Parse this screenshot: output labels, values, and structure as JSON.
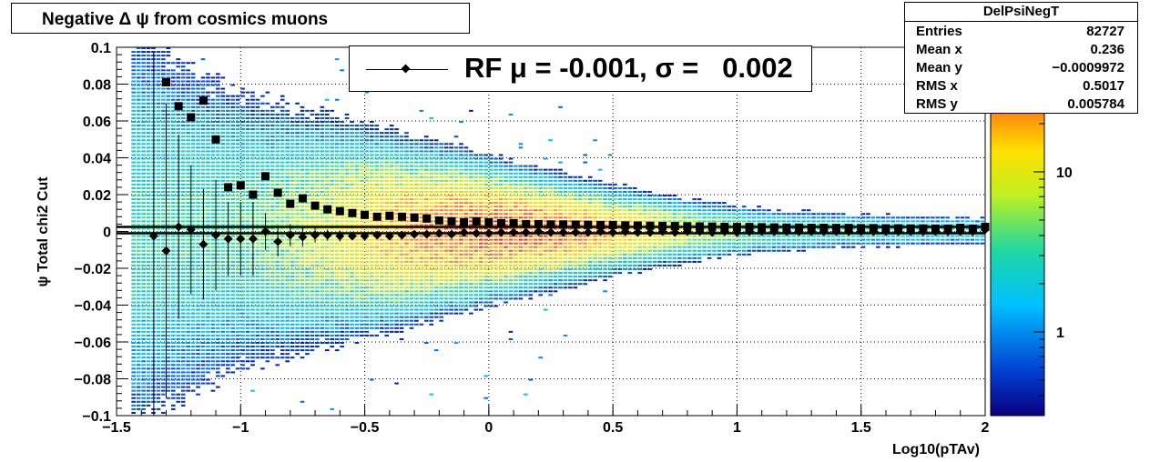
{
  "title": "Negative Δ ψ from cosmics muons",
  "legend": {
    "label": "RF μ = -0.001, σ =   0.002"
  },
  "stats": {
    "name": "DelPsiNegT",
    "rows": [
      {
        "key": "Entries",
        "value": "82727"
      },
      {
        "key": "Mean x",
        "value": "0.236"
      },
      {
        "key": "Mean y",
        "value": "−0.0009972"
      },
      {
        "key": "RMS x",
        "value": "0.5017"
      },
      {
        "key": "RMS y",
        "value": "0.005784"
      }
    ]
  },
  "chart_data": {
    "type": "heatmap",
    "title": "Negative Δ ψ from cosmics muons",
    "xlabel": "Log10(pTAv)",
    "ylabel": "ψ  Total chi2 Cut",
    "xlim": [
      -1.5,
      2
    ],
    "ylim": [
      -0.1,
      0.1
    ],
    "grid": true,
    "x_ticks": [
      -1.5,
      -1,
      -0.5,
      0,
      0.5,
      1,
      1.5,
      2
    ],
    "x_tick_labels": [
      "−1.5",
      "−1",
      "−0.5",
      "0",
      "0.5",
      "1",
      "1.5",
      "2"
    ],
    "y_ticks": [
      -0.1,
      -0.08,
      -0.06,
      -0.04,
      -0.02,
      0,
      0.02,
      0.04,
      0.06,
      0.08,
      0.1
    ],
    "y_tick_labels": [
      "−0.1",
      "−0.08",
      "−0.06",
      "−0.04",
      "−0.02",
      "0",
      "0.02",
      "0.04",
      "0.06",
      "0.08",
      "0.1"
    ],
    "z_scale": "log",
    "z_ticks": [
      1,
      10
    ],
    "z_tick_labels": [
      "1",
      "10"
    ],
    "z_range": [
      0.3,
      60
    ],
    "overlay_lines": [
      0.0025,
      -0.001
    ],
    "series": [
      {
        "name": "mean",
        "marker": "diamond",
        "x": [
          -1.35,
          -1.3,
          -1.25,
          -1.2,
          -1.15,
          -1.1,
          -1.05,
          -1.0,
          -0.95,
          -0.9,
          -0.85,
          -0.8,
          -0.75,
          -0.7,
          -0.65,
          -0.6,
          -0.55,
          -0.5,
          -0.45,
          -0.4,
          -0.35,
          -0.3,
          -0.25,
          -0.2,
          -0.15,
          -0.1,
          -0.05,
          0.0,
          0.05,
          0.1,
          0.15,
          0.2,
          0.25,
          0.3,
          0.35,
          0.4,
          0.45,
          0.5,
          0.55,
          0.6,
          0.65,
          0.7,
          0.75,
          0.8,
          0.85,
          0.9,
          0.95,
          1.0,
          1.05,
          1.1,
          1.15,
          1.2,
          1.25,
          1.3,
          1.35,
          1.4,
          1.45,
          1.5,
          1.55,
          1.6,
          1.65,
          1.7,
          1.75,
          1.8,
          1.85,
          1.9,
          1.95,
          2.0
        ],
        "y": [
          -0.0025,
          -0.0105,
          0.0025,
          0.001,
          -0.007,
          -0.002,
          -0.004,
          -0.004,
          -0.004,
          0.0,
          -0.0055,
          -0.002,
          -0.003,
          -0.002,
          -0.002,
          -0.0025,
          -0.0025,
          -0.0025,
          -0.002,
          -0.0025,
          -0.002,
          -0.0015,
          -0.0015,
          -0.001,
          -0.0015,
          -0.0005,
          -0.001,
          -0.001,
          -0.0005,
          -0.0005,
          -0.0005,
          0.0,
          -0.0005,
          -0.0005,
          -0.0005,
          -0.0005,
          0.0,
          -0.0005,
          0.0,
          -0.0005,
          -0.0005,
          0.0,
          -0.0005,
          0.0,
          0.0,
          -0.0005,
          0.0,
          -0.0005,
          0.0,
          0.0,
          0.0,
          0.0,
          0.0,
          0.0,
          0.0,
          0.0,
          0.0,
          0.0,
          0.0,
          0.0,
          0.0,
          0.0,
          0.0,
          0.0,
          0.0,
          0.0,
          0.0,
          0.001
        ],
        "yerr": [
          0.1,
          0.08,
          0.05,
          0.035,
          0.03,
          0.03,
          0.02,
          0.02,
          0.02,
          0.01,
          0.008,
          0.006,
          0.005,
          0.004,
          0.003,
          0.003,
          0.002,
          0.002,
          0.002,
          0.0015,
          0.0015,
          0.001,
          0.001,
          0.001,
          0.001,
          0.001,
          0.001,
          0.001,
          0.001,
          0.001,
          0.001,
          0.001,
          0.001,
          0.001,
          0.001,
          0.001,
          0.001,
          0.001,
          0.001,
          0.001,
          0.001,
          0.001,
          0.001,
          0.001,
          0.001,
          0.001,
          0.001,
          0.001,
          0.001,
          0.001,
          0.001,
          0.001,
          0.001,
          0.001,
          0.001,
          0.001,
          0.001,
          0.001,
          0.001,
          0.001,
          0.001,
          0.001,
          0.001,
          0.001,
          0.001,
          0.001,
          0.001,
          0.001
        ]
      },
      {
        "name": "rms",
        "marker": "square",
        "x": [
          -1.3,
          -1.25,
          -1.2,
          -1.15,
          -1.1,
          -1.05,
          -1.0,
          -0.95,
          -0.9,
          -0.85,
          -0.8,
          -0.75,
          -0.7,
          -0.65,
          -0.6,
          -0.55,
          -0.5,
          -0.45,
          -0.4,
          -0.35,
          -0.3,
          -0.25,
          -0.2,
          -0.15,
          -0.1,
          -0.05,
          0.0,
          0.05,
          0.1,
          0.15,
          0.2,
          0.25,
          0.3,
          0.35,
          0.4,
          0.45,
          0.5,
          0.55,
          0.6,
          0.65,
          0.7,
          0.75,
          0.8,
          0.85,
          0.9,
          0.95,
          1.0,
          1.05,
          1.1,
          1.15,
          1.2,
          1.25,
          1.3,
          1.35,
          1.4,
          1.45,
          1.5,
          1.55,
          1.6,
          1.65,
          1.7,
          1.75,
          1.8,
          1.85,
          1.9,
          1.95,
          2.0
        ],
        "y": [
          0.081,
          0.068,
          0.062,
          0.071,
          0.05,
          0.024,
          0.025,
          0.02,
          0.03,
          0.021,
          0.015,
          0.018,
          0.014,
          0.012,
          0.011,
          0.01,
          0.009,
          0.008,
          0.0085,
          0.008,
          0.0075,
          0.007,
          0.006,
          0.0055,
          0.005,
          0.0055,
          0.005,
          0.0045,
          0.0045,
          0.004,
          0.004,
          0.0038,
          0.0038,
          0.0037,
          0.0036,
          0.0035,
          0.0035,
          0.0033,
          0.0032,
          0.0031,
          0.003,
          0.0029,
          0.0028,
          0.0027,
          0.0026,
          0.0025,
          0.0024,
          0.0024,
          0.0023,
          0.0022,
          0.0021,
          0.0021,
          0.002,
          0.002,
          0.0019,
          0.0019,
          0.0018,
          0.0018,
          0.0017,
          0.0017,
          0.0016,
          0.0016,
          0.0015,
          0.0015,
          0.002,
          0.0015,
          0.0025
        ]
      }
    ]
  }
}
